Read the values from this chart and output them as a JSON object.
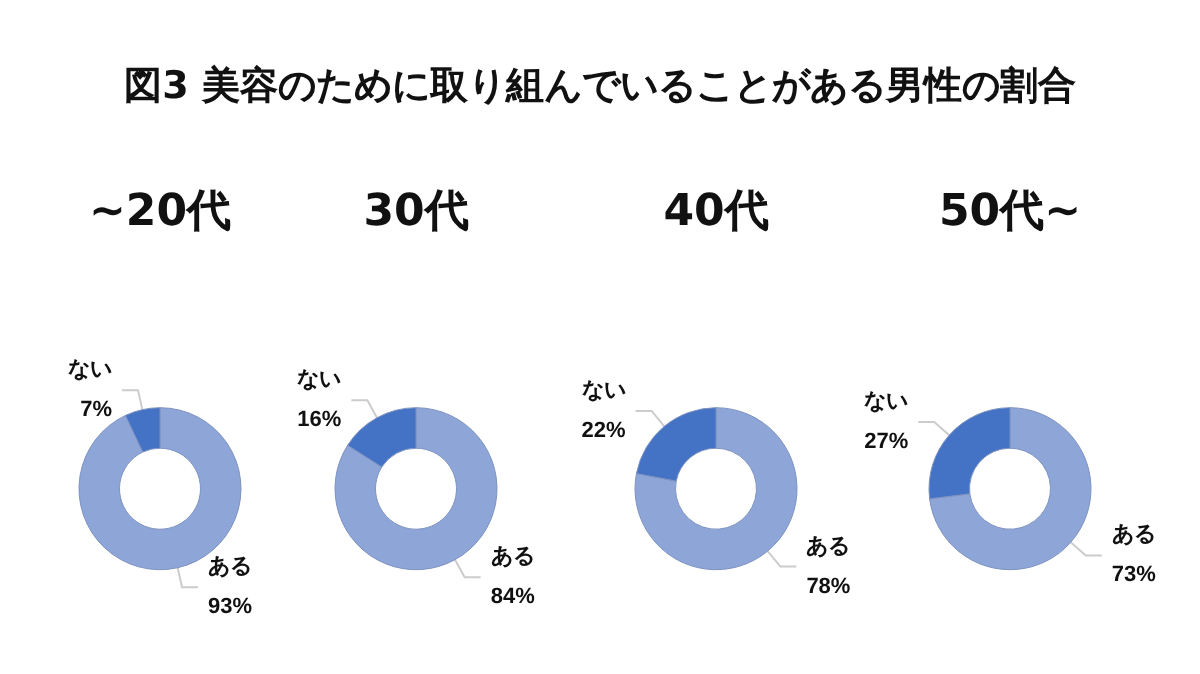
{
  "chart_data": [
    {
      "type": "donut",
      "title": "~20代",
      "annotations": [
        "図3 美容のために取り組んでいることがある男性の割合"
      ],
      "categories": [
        "ある",
        "ない"
      ],
      "values": [
        93,
        7
      ],
      "value_labels": [
        "93%",
        "7%"
      ],
      "colors": [
        "#8ea5d8",
        "#4472c4"
      ]
    },
    {
      "type": "donut",
      "title": "30代",
      "categories": [
        "ある",
        "ない"
      ],
      "values": [
        84,
        16
      ],
      "value_labels": [
        "84%",
        "16%"
      ],
      "colors": [
        "#8ea5d8",
        "#4472c4"
      ]
    },
    {
      "type": "donut",
      "title": "40代",
      "categories": [
        "ある",
        "ない"
      ],
      "values": [
        78,
        22
      ],
      "value_labels": [
        "78%",
        "22%"
      ],
      "colors": [
        "#8ea5d8",
        "#4472c4"
      ]
    },
    {
      "type": "donut",
      "title": "50代~",
      "categories": [
        "ある",
        "ない"
      ],
      "values": [
        73,
        27
      ],
      "value_labels": [
        "73%",
        "27%"
      ],
      "colors": [
        "#8ea5d8",
        "#4472c4"
      ]
    }
  ]
}
